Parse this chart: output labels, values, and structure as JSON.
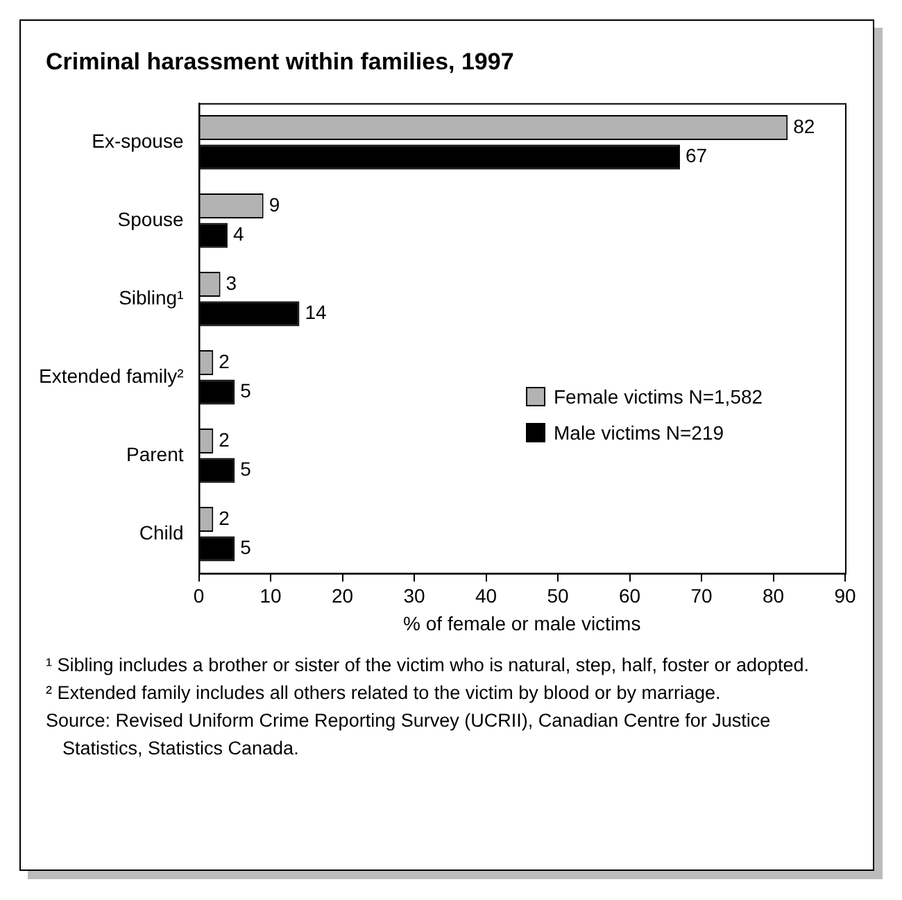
{
  "chart_data": {
    "type": "bar",
    "orientation": "horizontal",
    "title": "Criminal harassment within families, 1997",
    "xlabel": "% of female or male victims",
    "categories": [
      "Ex-spouse",
      "Spouse",
      "Sibling¹",
      "Extended family²",
      "Parent",
      "Child"
    ],
    "series": [
      {
        "name": "Female victims N=1,582",
        "color": "#b3b3b3",
        "values": [
          82,
          9,
          3,
          2,
          2,
          2
        ]
      },
      {
        "name": "Male victims N=219",
        "color": "#000000",
        "values": [
          67,
          4,
          14,
          5,
          5,
          5
        ]
      }
    ],
    "xlim": [
      0,
      90
    ],
    "xticks": [
      0,
      10,
      20,
      30,
      40,
      50,
      60,
      70,
      80,
      90
    ],
    "grid": false,
    "legend": "bottom right",
    "data_labels": true,
    "annotations": [
      "¹ Sibling includes a brother or sister of the victim who is natural, step, half, foster or adopted.",
      "² Extended family includes all others related to the victim by blood or by marriage.",
      "Source: Revised Uniform Crime Reporting Survey (UCRII), Canadian Centre for Justice Statistics, Statistics Canada."
    ]
  }
}
